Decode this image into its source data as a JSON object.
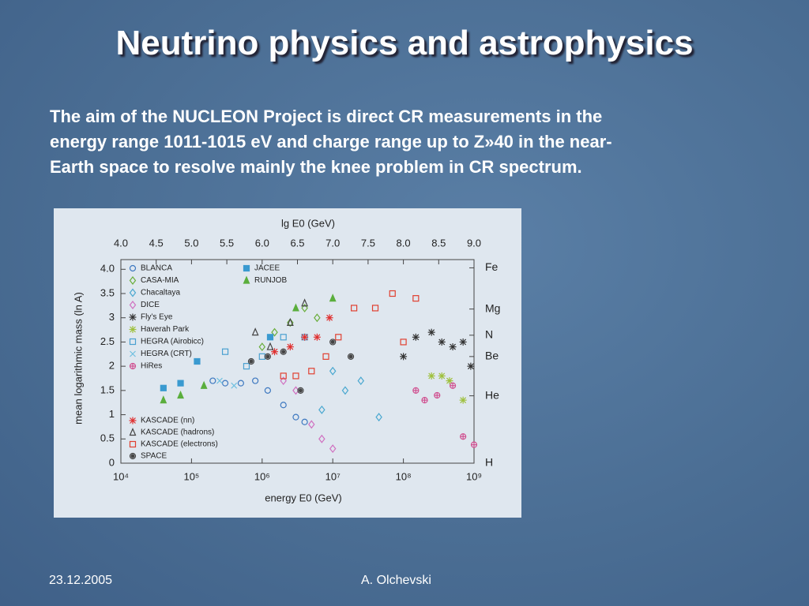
{
  "title": "Neutrino physics and astrophysics",
  "body": [
    "The aim of the NUCLEON Project is direct CR measurements in the",
    "energy range 1011-1015 eV and charge range up to Z»40 in the near-",
    "Earth space to resolve mainly the knee problem in CR spectrum."
  ],
  "footer": {
    "date": "23.12.2005",
    "author": "A. Olchevski"
  },
  "chart_data": {
    "type": "scatter",
    "x_label": "energy E0 (GeV)",
    "top_label": "lg E0 (GeV)",
    "y_label": "mean logarithmic mass (ln A)",
    "xscale": "log",
    "xlim": [
      10000,
      1000000000
    ],
    "xticks": [
      {
        "value": 10000,
        "label": "10⁴"
      },
      {
        "value": 100000,
        "label": "10⁵"
      },
      {
        "value": 1000000,
        "label": "10⁶"
      },
      {
        "value": 10000000,
        "label": "10⁷"
      },
      {
        "value": 100000000,
        "label": "10⁸"
      },
      {
        "value": 1000000000,
        "label": "10⁹"
      }
    ],
    "top_lim": [
      4,
      9
    ],
    "top_ticks": [
      {
        "value": 4,
        "label": "4.0"
      },
      4.5,
      {
        "value": 5,
        "label": "5.0"
      },
      5.5,
      {
        "value": 6,
        "label": "6.0"
      },
      6.5,
      {
        "value": 7,
        "label": "7.0"
      },
      7.5,
      {
        "value": 8,
        "label": "8.0"
      },
      8.5,
      {
        "value": 9,
        "label": "9.0"
      }
    ],
    "ylim": [
      0,
      4.2
    ],
    "yticks": [
      0,
      0.5,
      1,
      1.5,
      2,
      2.5,
      3,
      3.5,
      {
        "value": 4,
        "label": "4.0"
      }
    ],
    "y2ticks": [
      {
        "value": 4.03,
        "label": "Fe"
      },
      {
        "value": 3.18,
        "label": "Mg"
      },
      {
        "value": 2.64,
        "label": "N"
      },
      {
        "value": 2.2,
        "label": "Be"
      },
      {
        "value": 1.39,
        "label": "He"
      },
      {
        "value": 0,
        "label": "H"
      }
    ],
    "series": [
      {
        "name": "BLANCA",
        "color": "#3d78c0",
        "marker": "circle",
        "x": [
          200000,
          300000,
          500000,
          800000,
          1200000,
          2000000,
          3000000,
          4000000
        ],
        "values": [
          1.7,
          1.65,
          1.65,
          1.7,
          1.5,
          1.2,
          0.95,
          0.85
        ]
      },
      {
        "name": "CASA-MIA",
        "color": "#6aae3c",
        "marker": "diamond",
        "x": [
          1000000,
          1500000,
          2500000,
          4000000,
          6000000
        ],
        "values": [
          2.4,
          2.7,
          2.9,
          3.2,
          3.0
        ]
      },
      {
        "name": "Chacaltaya",
        "color": "#4aa8d0",
        "marker": "diamond",
        "x": [
          7000000,
          10000000,
          15000000,
          25000000,
          45000000
        ],
        "values": [
          1.1,
          1.9,
          1.5,
          1.7,
          0.95
        ]
      },
      {
        "name": "DICE",
        "color": "#d070c0",
        "marker": "diamond",
        "x": [
          2000000,
          3000000,
          5000000,
          7000000,
          10000000
        ],
        "values": [
          1.7,
          1.5,
          0.8,
          0.5,
          0.3
        ]
      },
      {
        "name": "Fly’s Eye",
        "color": "#333333",
        "marker": "cross",
        "x": [
          100000000,
          150000000,
          250000000,
          350000000,
          500000000,
          700000000,
          900000000
        ],
        "values": [
          2.2,
          2.6,
          2.7,
          2.5,
          2.4,
          2.5,
          2.0
        ]
      },
      {
        "name": "Haverah Park",
        "color": "#9ec03c",
        "marker": "star",
        "x": [
          250000000,
          350000000,
          450000000,
          700000000
        ],
        "values": [
          1.8,
          1.8,
          1.7,
          1.3
        ]
      },
      {
        "name": "HEGRA (Airobicc)",
        "color": "#4aa0d0",
        "marker": "square",
        "x": [
          300000,
          600000,
          1000000,
          2000000,
          4000000
        ],
        "values": [
          2.3,
          2.0,
          2.2,
          2.6,
          2.6
        ]
      },
      {
        "name": "HEGRA (CRT)",
        "color": "#70c0e0",
        "marker": "x",
        "x": [
          250000,
          400000
        ],
        "values": [
          1.7,
          1.6
        ]
      },
      {
        "name": "HiRes",
        "color": "#d05090",
        "marker": "circleplus",
        "x": [
          150000000,
          200000000,
          300000000,
          500000000,
          700000000,
          1000000000
        ],
        "values": [
          1.5,
          1.3,
          1.4,
          1.6,
          0.55,
          0.38
        ]
      },
      {
        "name": "JACEE",
        "color": "#3a9ad0",
        "marker": "squarefill",
        "x": [
          40000,
          70000,
          120000,
          1300000
        ],
        "values": [
          1.55,
          1.65,
          2.1,
          2.6
        ]
      },
      {
        "name": "RUNJOB",
        "color": "#5aae3c",
        "marker": "trianglefill",
        "x": [
          40000,
          70000,
          150000,
          3000000,
          10000000
        ],
        "values": [
          1.3,
          1.4,
          1.6,
          3.2,
          3.4
        ]
      },
      {
        "name": "KASCADE (nn)",
        "color": "#e03030",
        "marker": "star",
        "x": [
          1500000,
          2500000,
          4000000,
          6000000,
          9000000
        ],
        "values": [
          2.3,
          2.4,
          2.6,
          2.6,
          3.0
        ]
      },
      {
        "name": "KASCADE (hadrons)",
        "color": "#444444",
        "marker": "triangle",
        "x": [
          800000,
          1300000,
          2500000,
          4000000
        ],
        "values": [
          2.7,
          2.4,
          2.9,
          3.3
        ]
      },
      {
        "name": "KASCADE (electrons)",
        "color": "#e04030",
        "marker": "square",
        "x": [
          2000000,
          3000000,
          5000000,
          8000000,
          12000000,
          20000000,
          40000000,
          70000000,
          100000000,
          150000000
        ],
        "values": [
          1.8,
          1.8,
          1.9,
          2.2,
          2.6,
          3.2,
          3.2,
          3.5,
          2.5,
          3.4
        ]
      },
      {
        "name": "SPACE",
        "color": "#444444",
        "marker": "circlex",
        "x": [
          700000,
          1200000,
          2000000,
          3500000,
          10000000,
          18000000
        ],
        "values": [
          2.1,
          2.2,
          2.3,
          1.5,
          2.5,
          2.2
        ]
      }
    ]
  }
}
